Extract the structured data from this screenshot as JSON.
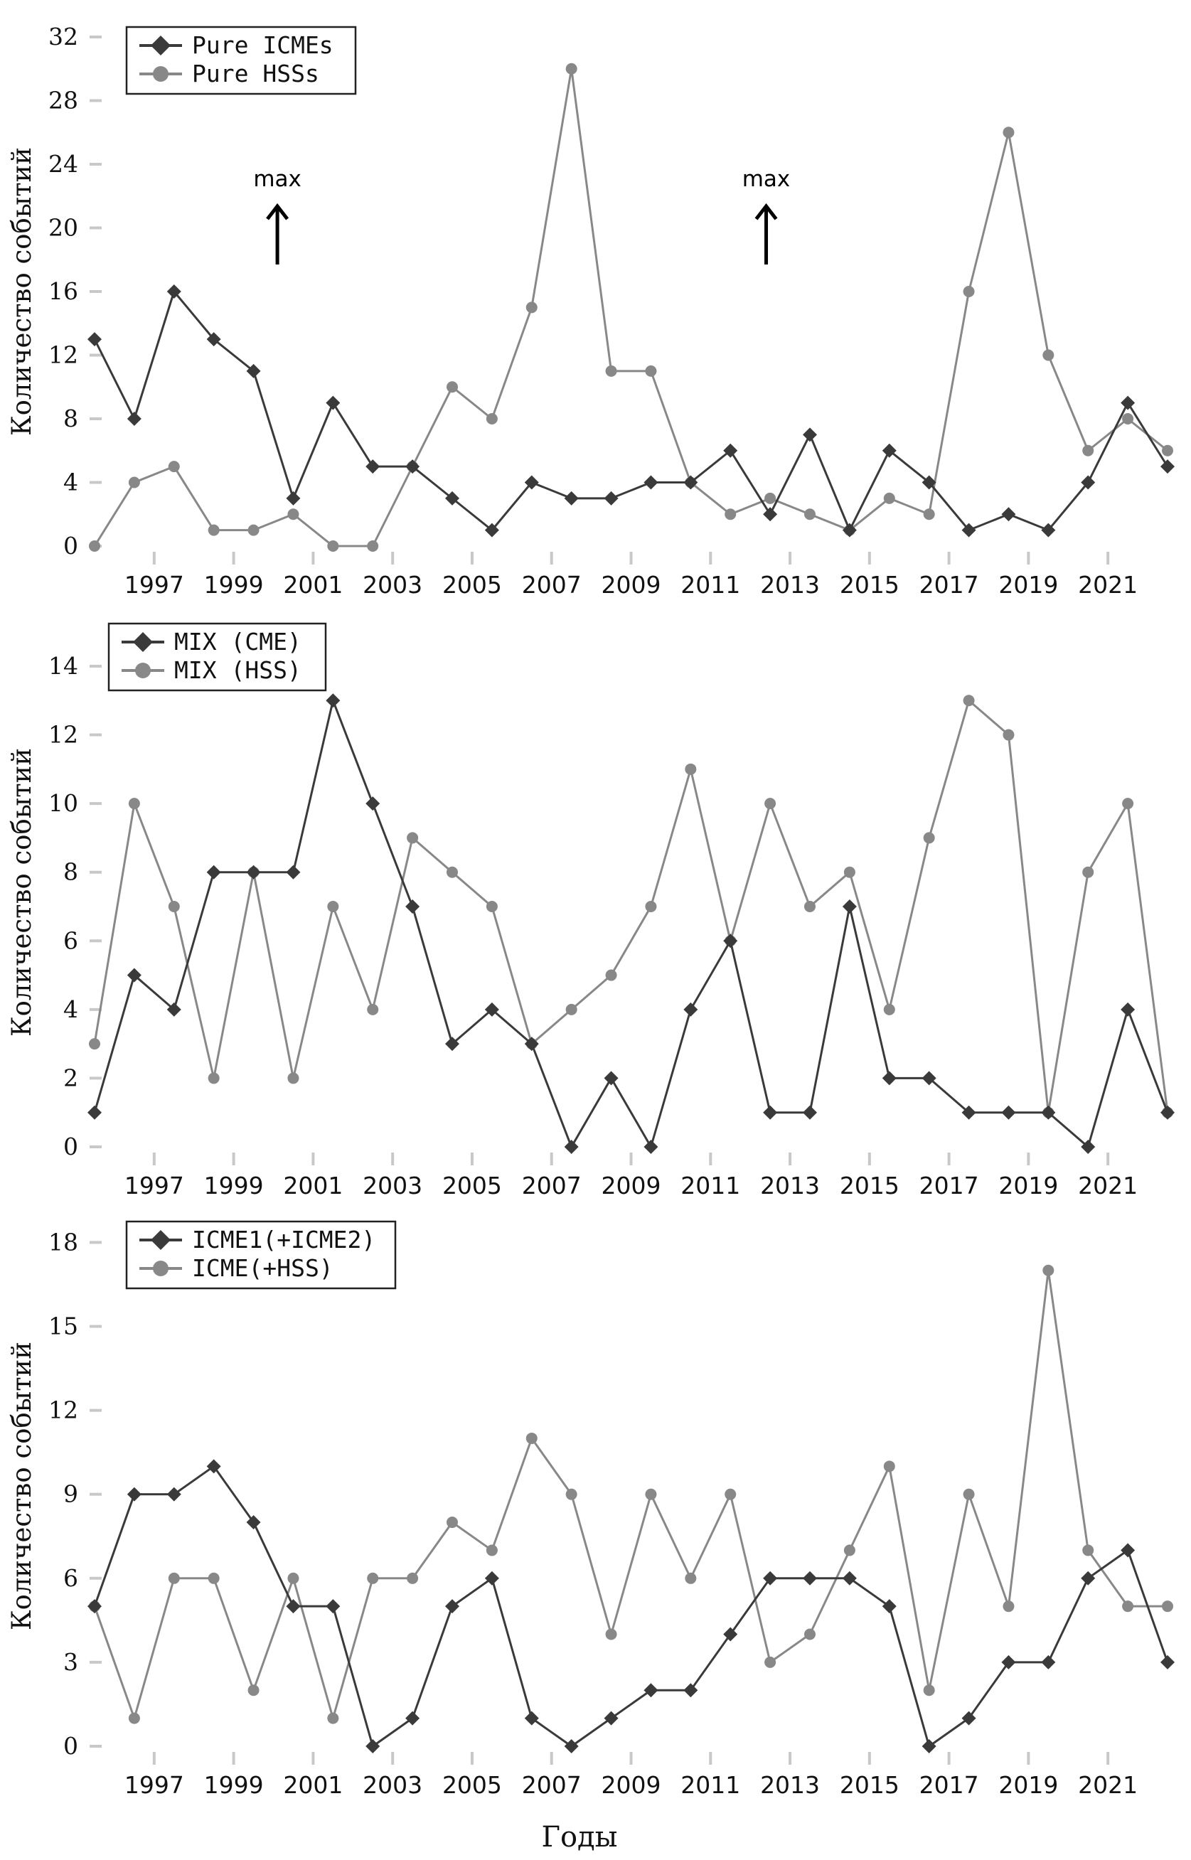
{
  "chart_data": [
    {
      "type": "line",
      "x": [
        1996,
        1997,
        1998,
        1999,
        2000,
        2001,
        2002,
        2003,
        2004,
        2005,
        2006,
        2007,
        2008,
        2009,
        2010,
        2011,
        2012,
        2013,
        2014,
        2015,
        2016,
        2017,
        2018,
        2019,
        2020,
        2021,
        2022,
        2023
      ],
      "series": [
        {
          "name": "Pure ICMEs",
          "marker": "diamond",
          "color": "#3a3a3a",
          "values": [
            13,
            8,
            16,
            13,
            11,
            3,
            9,
            5,
            5,
            3,
            1,
            4,
            3,
            3,
            4,
            4,
            6,
            2,
            7,
            1,
            6,
            4,
            1,
            2,
            1,
            4,
            9,
            5
          ]
        },
        {
          "name": "Pure HSSs",
          "marker": "circle",
          "color": "#888888",
          "values": [
            0,
            4,
            5,
            1,
            1,
            2,
            0,
            0,
            5,
            10,
            8,
            15,
            30,
            11,
            11,
            4,
            2,
            3,
            2,
            1,
            3,
            2,
            16,
            26,
            12,
            6,
            8,
            6
          ]
        }
      ],
      "xticks": [
        "1997",
        "1999",
        "2001",
        "2003",
        "2005",
        "2007",
        "2009",
        "2011",
        "2013",
        "2015",
        "2017",
        "2019",
        "2021"
      ],
      "yticks": [
        "0",
        "4",
        "8",
        "12",
        "16",
        "20",
        "24",
        "28",
        "32"
      ],
      "ylim": [
        0,
        32
      ],
      "ylabel": "Количество событий",
      "xlabel": "",
      "legend": "top-left",
      "annotations": [
        {
          "text": "max",
          "x": 2000.6
        },
        {
          "text": "max",
          "x": 2012.9
        }
      ]
    },
    {
      "type": "line",
      "x": [
        1996,
        1997,
        1998,
        1999,
        2000,
        2001,
        2002,
        2003,
        2004,
        2005,
        2006,
        2007,
        2008,
        2009,
        2010,
        2011,
        2012,
        2013,
        2014,
        2015,
        2016,
        2017,
        2018,
        2019,
        2020,
        2021,
        2022,
        2023
      ],
      "series": [
        {
          "name": "MIX (CME)",
          "marker": "diamond",
          "color": "#3a3a3a",
          "values": [
            1,
            5,
            4,
            8,
            8,
            8,
            13,
            10,
            7,
            3,
            4,
            3,
            0,
            2,
            0,
            4,
            6,
            1,
            1,
            7,
            2,
            2,
            1,
            1,
            1,
            0,
            4,
            1
          ]
        },
        {
          "name": "MIX (HSS)",
          "marker": "circle",
          "color": "#888888",
          "values": [
            3,
            10,
            7,
            2,
            8,
            2,
            7,
            4,
            9,
            8,
            7,
            3,
            4,
            5,
            7,
            11,
            6,
            10,
            7,
            8,
            4,
            9,
            13,
            12,
            1,
            8,
            10,
            1
          ]
        }
      ],
      "xticks": [
        "1997",
        "1999",
        "2001",
        "2003",
        "2005",
        "2007",
        "2009",
        "2011",
        "2013",
        "2015",
        "2017",
        "2019",
        "2021"
      ],
      "yticks": [
        "0",
        "2",
        "4",
        "6",
        "8",
        "10",
        "12",
        "14"
      ],
      "ylim": [
        0,
        14.6
      ],
      "ylabel": "Количество событий",
      "xlabel": "",
      "legend": "top-left"
    },
    {
      "type": "line",
      "x": [
        1996,
        1997,
        1998,
        1999,
        2000,
        2001,
        2002,
        2003,
        2004,
        2005,
        2006,
        2007,
        2008,
        2009,
        2010,
        2011,
        2012,
        2013,
        2014,
        2015,
        2016,
        2017,
        2018,
        2019,
        2020,
        2021,
        2022,
        2023
      ],
      "series": [
        {
          "name": "ICME1(+ICME2)",
          "marker": "diamond",
          "color": "#3a3a3a",
          "values": [
            5,
            9,
            9,
            10,
            8,
            5,
            5,
            0,
            1,
            5,
            6,
            1,
            0,
            1,
            2,
            2,
            4,
            6,
            6,
            6,
            5,
            0,
            1,
            3,
            3,
            6,
            7,
            3
          ]
        },
        {
          "name": "ICME(+HSS)",
          "marker": "circle",
          "color": "#888888",
          "values": [
            5,
            1,
            6,
            6,
            2,
            6,
            1,
            6,
            6,
            8,
            7,
            11,
            9,
            4,
            9,
            6,
            9,
            3,
            4,
            7,
            10,
            2,
            9,
            5,
            17,
            7,
            5,
            5
          ]
        }
      ],
      "xticks": [
        "1997",
        "1999",
        "2001",
        "2003",
        "2005",
        "2007",
        "2009",
        "2011",
        "2013",
        "2015",
        "2017",
        "2019",
        "2021"
      ],
      "yticks": [
        "0",
        "3",
        "6",
        "9",
        "12",
        "15",
        "18"
      ],
      "ylim": [
        0,
        19
      ],
      "ylabel": "Количество событий",
      "xlabel": "Годы",
      "legend": "top-left"
    }
  ]
}
